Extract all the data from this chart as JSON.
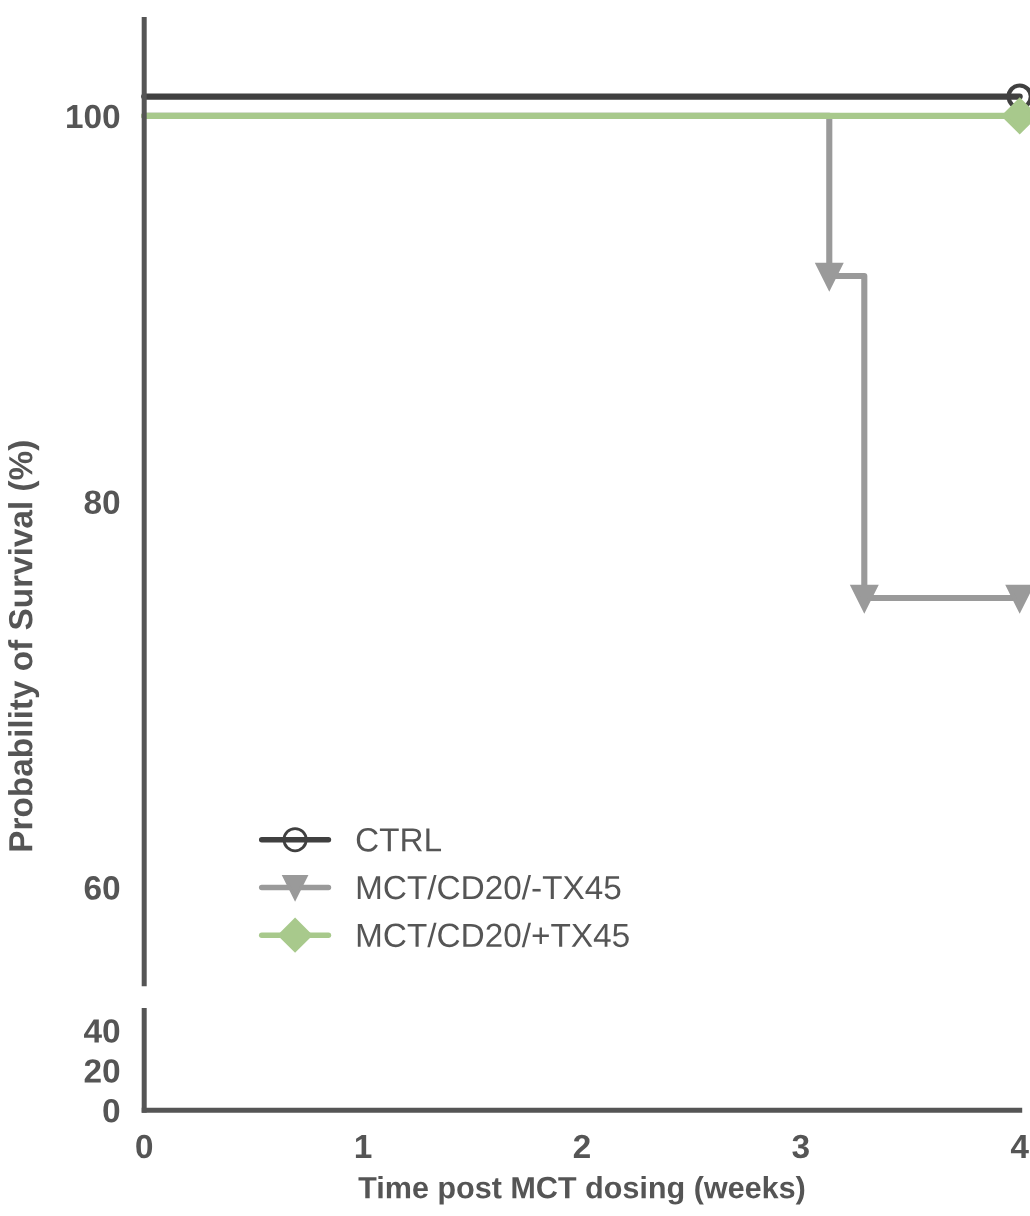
{
  "chart_data": [
    {
      "type": "step",
      "ylabel": "Probability of Survival (%)",
      "xlim": [
        0,
        4
      ],
      "ylim": [
        55,
        105
      ],
      "yticks": [
        60,
        80,
        100
      ],
      "tick_labels": "y",
      "legend": "bottom left",
      "series": [
        {
          "name": "CTRL",
          "color": "#404040",
          "marker": "circle",
          "x": [
            0,
            4
          ],
          "values": [
            101,
            101
          ]
        },
        {
          "name": "MCT/CD20/-TX45",
          "color": "#9a9a9a",
          "marker": "triangle",
          "x": [
            0,
            3.13,
            3.29,
            4
          ],
          "values": [
            100,
            91.7,
            75,
            75
          ]
        },
        {
          "name": "MCT/CD20/+TX45",
          "color": "#a8c98c",
          "marker": "diamond",
          "x": [
            0,
            4
          ],
          "values": [
            100,
            100
          ]
        }
      ]
    },
    {
      "type": "step",
      "xlabel": "Time post MCT dosing (weeks)",
      "xlim": [
        0,
        4
      ],
      "xticks": [
        0,
        1,
        2,
        3,
        4
      ],
      "ylim": [
        0,
        50
      ],
      "yticks": [
        0,
        20,
        40
      ]
    }
  ]
}
